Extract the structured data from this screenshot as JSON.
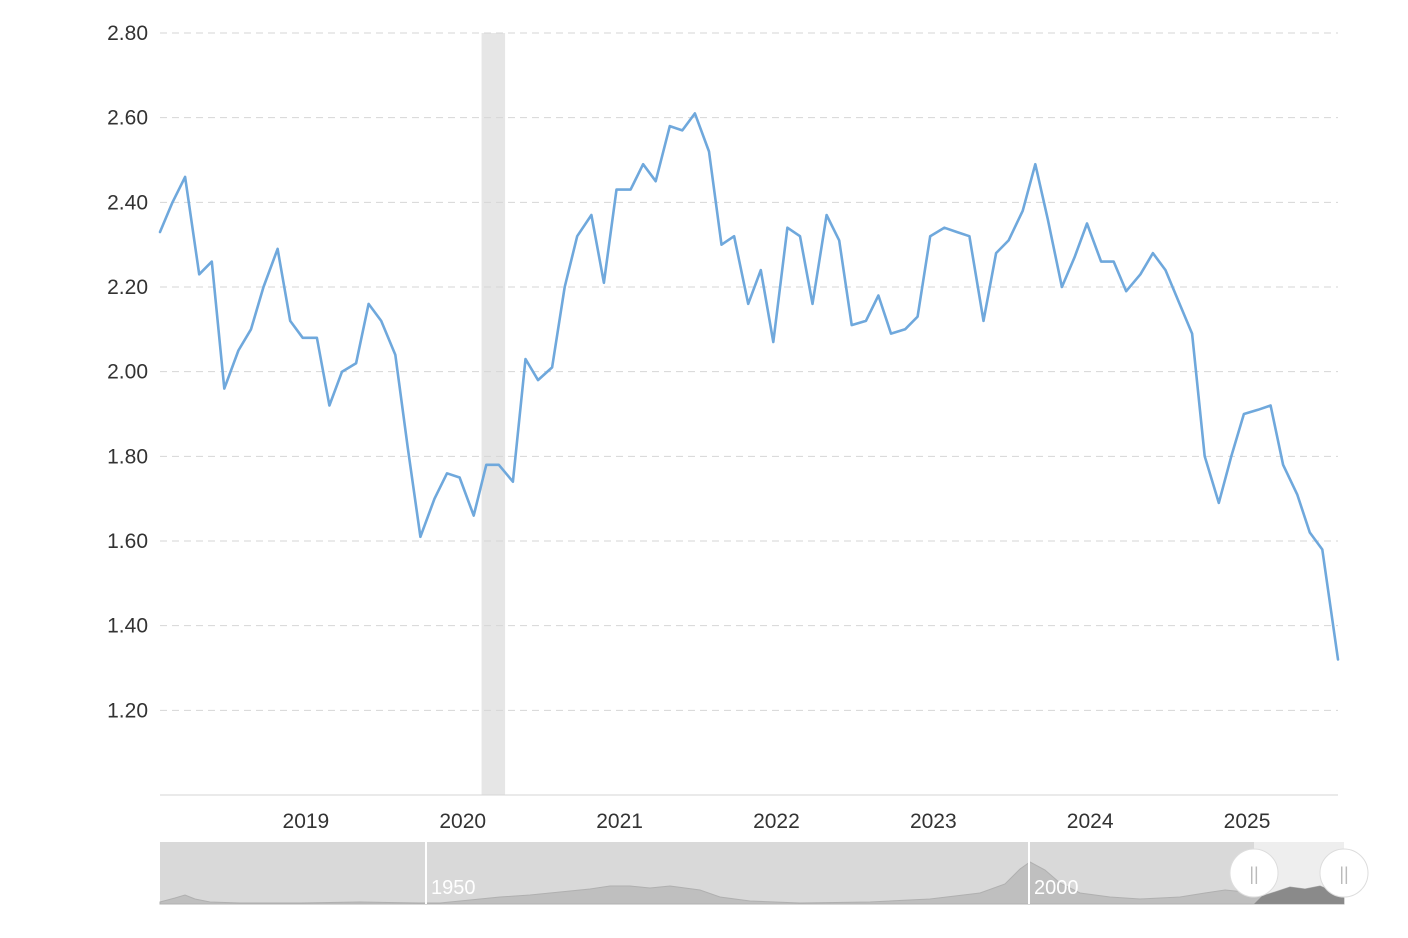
{
  "chart_data": {
    "type": "line",
    "title": "",
    "xlabel": "",
    "ylabel": "",
    "ylim": [
      1.0,
      2.8
    ],
    "yticks": [
      "1.20",
      "1.40",
      "1.60",
      "1.80",
      "2.00",
      "2.20",
      "2.40",
      "2.60",
      "2.80"
    ],
    "x_tick_labels": [
      "2019",
      "2020",
      "2021",
      "2022",
      "2023",
      "2024",
      "2025"
    ],
    "xlim": [
      2018.07,
      2025.58
    ],
    "grid": true,
    "legend": "none",
    "line_color": "#6fa8dc",
    "recession_color": "#e6e6e6",
    "recession_band": [
      2020.12,
      2020.27
    ],
    "series": [
      {
        "values": [
          [
            2018.07,
            2.33
          ],
          [
            2018.15,
            2.4
          ],
          [
            2018.23,
            2.46
          ],
          [
            2018.32,
            2.23
          ],
          [
            2018.4,
            2.26
          ],
          [
            2018.48,
            1.96
          ],
          [
            2018.57,
            2.05
          ],
          [
            2018.65,
            2.1
          ],
          [
            2018.73,
            2.2
          ],
          [
            2018.82,
            2.29
          ],
          [
            2018.9,
            2.12
          ],
          [
            2018.98,
            2.08
          ],
          [
            2019.07,
            2.08
          ],
          [
            2019.15,
            1.92
          ],
          [
            2019.23,
            2.0
          ],
          [
            2019.32,
            2.02
          ],
          [
            2019.4,
            2.16
          ],
          [
            2019.48,
            2.12
          ],
          [
            2019.57,
            2.04
          ],
          [
            2019.65,
            1.82
          ],
          [
            2019.73,
            1.61
          ],
          [
            2019.82,
            1.7
          ],
          [
            2019.9,
            1.76
          ],
          [
            2019.98,
            1.75
          ],
          [
            2020.07,
            1.66
          ],
          [
            2020.15,
            1.78
          ],
          [
            2020.23,
            1.78
          ],
          [
            2020.32,
            1.74
          ],
          [
            2020.4,
            2.03
          ],
          [
            2020.48,
            1.98
          ],
          [
            2020.57,
            2.01
          ],
          [
            2020.65,
            2.2
          ],
          [
            2020.73,
            2.32
          ],
          [
            2020.82,
            2.37
          ],
          [
            2020.9,
            2.21
          ],
          [
            2020.98,
            2.43
          ],
          [
            2021.07,
            2.43
          ],
          [
            2021.15,
            2.49
          ],
          [
            2021.23,
            2.45
          ],
          [
            2021.32,
            2.58
          ],
          [
            2021.4,
            2.57
          ],
          [
            2021.48,
            2.61
          ],
          [
            2021.57,
            2.52
          ],
          [
            2021.65,
            2.3
          ],
          [
            2021.73,
            2.32
          ],
          [
            2021.82,
            2.16
          ],
          [
            2021.9,
            2.24
          ],
          [
            2021.98,
            2.07
          ],
          [
            2022.07,
            2.34
          ],
          [
            2022.15,
            2.32
          ],
          [
            2022.23,
            2.16
          ],
          [
            2022.32,
            2.37
          ],
          [
            2022.4,
            2.31
          ],
          [
            2022.48,
            2.11
          ],
          [
            2022.57,
            2.12
          ],
          [
            2022.65,
            2.18
          ],
          [
            2022.73,
            2.09
          ],
          [
            2022.82,
            2.1
          ],
          [
            2022.9,
            2.13
          ],
          [
            2022.98,
            2.32
          ],
          [
            2023.07,
            2.34
          ],
          [
            2023.15,
            2.33
          ],
          [
            2023.23,
            2.32
          ],
          [
            2023.32,
            2.12
          ],
          [
            2023.4,
            2.28
          ],
          [
            2023.48,
            2.31
          ],
          [
            2023.57,
            2.38
          ],
          [
            2023.65,
            2.49
          ],
          [
            2023.73,
            2.36
          ],
          [
            2023.82,
            2.2
          ],
          [
            2023.9,
            2.27
          ],
          [
            2023.98,
            2.35
          ],
          [
            2024.07,
            2.26
          ],
          [
            2024.15,
            2.26
          ],
          [
            2024.23,
            2.19
          ],
          [
            2024.32,
            2.23
          ],
          [
            2024.4,
            2.28
          ],
          [
            2024.48,
            2.24
          ],
          [
            2024.57,
            2.16
          ],
          [
            2024.65,
            2.09
          ],
          [
            2024.73,
            1.8
          ],
          [
            2024.82,
            1.69
          ],
          [
            2024.9,
            1.8
          ],
          [
            2024.98,
            1.9
          ],
          [
            2025.07,
            1.91
          ],
          [
            2025.15,
            1.92
          ],
          [
            2025.23,
            1.78
          ],
          [
            2025.32,
            1.71
          ],
          [
            2025.4,
            1.62
          ],
          [
            2025.48,
            1.58
          ],
          [
            2025.58,
            1.32
          ]
        ]
      }
    ],
    "navigator": {
      "labels": [
        "1950",
        "2000"
      ],
      "handles": [
        "||",
        "||"
      ],
      "background": "#d9d9d9",
      "selected_fill": "#eeeeee",
      "area_color": "#bfbfbf"
    }
  }
}
